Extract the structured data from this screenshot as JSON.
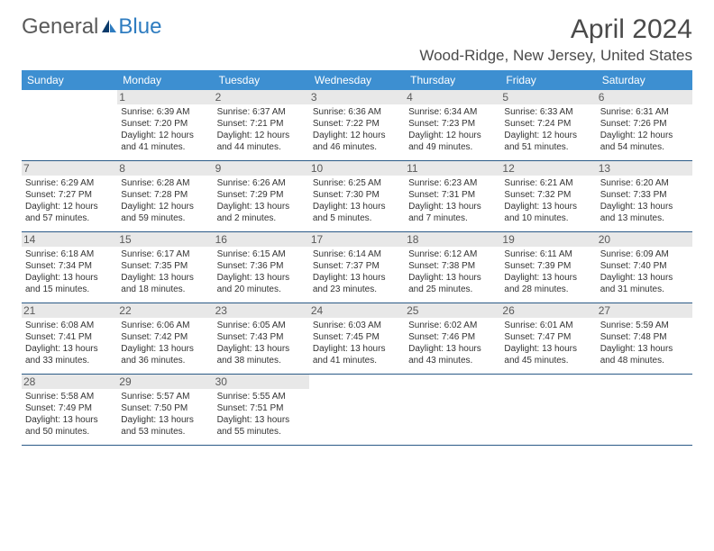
{
  "logo": {
    "word1": "General",
    "word2": "Blue"
  },
  "title": "April 2024",
  "location": "Wood-Ridge, New Jersey, United States",
  "colors": {
    "header_bg": "#3d8fd1",
    "header_text": "#ffffff",
    "daynum_bg": "#e8e8e8",
    "border": "#2b5a87",
    "logo_gray": "#5a5a5a",
    "logo_blue": "#2e7cc0"
  },
  "day_headers": [
    "Sunday",
    "Monday",
    "Tuesday",
    "Wednesday",
    "Thursday",
    "Friday",
    "Saturday"
  ],
  "weeks": [
    [
      null,
      {
        "n": "1",
        "sr": "Sunrise: 6:39 AM",
        "ss": "Sunset: 7:20 PM",
        "dl": "Daylight: 12 hours and 41 minutes."
      },
      {
        "n": "2",
        "sr": "Sunrise: 6:37 AM",
        "ss": "Sunset: 7:21 PM",
        "dl": "Daylight: 12 hours and 44 minutes."
      },
      {
        "n": "3",
        "sr": "Sunrise: 6:36 AM",
        "ss": "Sunset: 7:22 PM",
        "dl": "Daylight: 12 hours and 46 minutes."
      },
      {
        "n": "4",
        "sr": "Sunrise: 6:34 AM",
        "ss": "Sunset: 7:23 PM",
        "dl": "Daylight: 12 hours and 49 minutes."
      },
      {
        "n": "5",
        "sr": "Sunrise: 6:33 AM",
        "ss": "Sunset: 7:24 PM",
        "dl": "Daylight: 12 hours and 51 minutes."
      },
      {
        "n": "6",
        "sr": "Sunrise: 6:31 AM",
        "ss": "Sunset: 7:26 PM",
        "dl": "Daylight: 12 hours and 54 minutes."
      }
    ],
    [
      {
        "n": "7",
        "sr": "Sunrise: 6:29 AM",
        "ss": "Sunset: 7:27 PM",
        "dl": "Daylight: 12 hours and 57 minutes."
      },
      {
        "n": "8",
        "sr": "Sunrise: 6:28 AM",
        "ss": "Sunset: 7:28 PM",
        "dl": "Daylight: 12 hours and 59 minutes."
      },
      {
        "n": "9",
        "sr": "Sunrise: 6:26 AM",
        "ss": "Sunset: 7:29 PM",
        "dl": "Daylight: 13 hours and 2 minutes."
      },
      {
        "n": "10",
        "sr": "Sunrise: 6:25 AM",
        "ss": "Sunset: 7:30 PM",
        "dl": "Daylight: 13 hours and 5 minutes."
      },
      {
        "n": "11",
        "sr": "Sunrise: 6:23 AM",
        "ss": "Sunset: 7:31 PM",
        "dl": "Daylight: 13 hours and 7 minutes."
      },
      {
        "n": "12",
        "sr": "Sunrise: 6:21 AM",
        "ss": "Sunset: 7:32 PM",
        "dl": "Daylight: 13 hours and 10 minutes."
      },
      {
        "n": "13",
        "sr": "Sunrise: 6:20 AM",
        "ss": "Sunset: 7:33 PM",
        "dl": "Daylight: 13 hours and 13 minutes."
      }
    ],
    [
      {
        "n": "14",
        "sr": "Sunrise: 6:18 AM",
        "ss": "Sunset: 7:34 PM",
        "dl": "Daylight: 13 hours and 15 minutes."
      },
      {
        "n": "15",
        "sr": "Sunrise: 6:17 AM",
        "ss": "Sunset: 7:35 PM",
        "dl": "Daylight: 13 hours and 18 minutes."
      },
      {
        "n": "16",
        "sr": "Sunrise: 6:15 AM",
        "ss": "Sunset: 7:36 PM",
        "dl": "Daylight: 13 hours and 20 minutes."
      },
      {
        "n": "17",
        "sr": "Sunrise: 6:14 AM",
        "ss": "Sunset: 7:37 PM",
        "dl": "Daylight: 13 hours and 23 minutes."
      },
      {
        "n": "18",
        "sr": "Sunrise: 6:12 AM",
        "ss": "Sunset: 7:38 PM",
        "dl": "Daylight: 13 hours and 25 minutes."
      },
      {
        "n": "19",
        "sr": "Sunrise: 6:11 AM",
        "ss": "Sunset: 7:39 PM",
        "dl": "Daylight: 13 hours and 28 minutes."
      },
      {
        "n": "20",
        "sr": "Sunrise: 6:09 AM",
        "ss": "Sunset: 7:40 PM",
        "dl": "Daylight: 13 hours and 31 minutes."
      }
    ],
    [
      {
        "n": "21",
        "sr": "Sunrise: 6:08 AM",
        "ss": "Sunset: 7:41 PM",
        "dl": "Daylight: 13 hours and 33 minutes."
      },
      {
        "n": "22",
        "sr": "Sunrise: 6:06 AM",
        "ss": "Sunset: 7:42 PM",
        "dl": "Daylight: 13 hours and 36 minutes."
      },
      {
        "n": "23",
        "sr": "Sunrise: 6:05 AM",
        "ss": "Sunset: 7:43 PM",
        "dl": "Daylight: 13 hours and 38 minutes."
      },
      {
        "n": "24",
        "sr": "Sunrise: 6:03 AM",
        "ss": "Sunset: 7:45 PM",
        "dl": "Daylight: 13 hours and 41 minutes."
      },
      {
        "n": "25",
        "sr": "Sunrise: 6:02 AM",
        "ss": "Sunset: 7:46 PM",
        "dl": "Daylight: 13 hours and 43 minutes."
      },
      {
        "n": "26",
        "sr": "Sunrise: 6:01 AM",
        "ss": "Sunset: 7:47 PM",
        "dl": "Daylight: 13 hours and 45 minutes."
      },
      {
        "n": "27",
        "sr": "Sunrise: 5:59 AM",
        "ss": "Sunset: 7:48 PM",
        "dl": "Daylight: 13 hours and 48 minutes."
      }
    ],
    [
      {
        "n": "28",
        "sr": "Sunrise: 5:58 AM",
        "ss": "Sunset: 7:49 PM",
        "dl": "Daylight: 13 hours and 50 minutes."
      },
      {
        "n": "29",
        "sr": "Sunrise: 5:57 AM",
        "ss": "Sunset: 7:50 PM",
        "dl": "Daylight: 13 hours and 53 minutes."
      },
      {
        "n": "30",
        "sr": "Sunrise: 5:55 AM",
        "ss": "Sunset: 7:51 PM",
        "dl": "Daylight: 13 hours and 55 minutes."
      },
      null,
      null,
      null,
      null
    ]
  ]
}
